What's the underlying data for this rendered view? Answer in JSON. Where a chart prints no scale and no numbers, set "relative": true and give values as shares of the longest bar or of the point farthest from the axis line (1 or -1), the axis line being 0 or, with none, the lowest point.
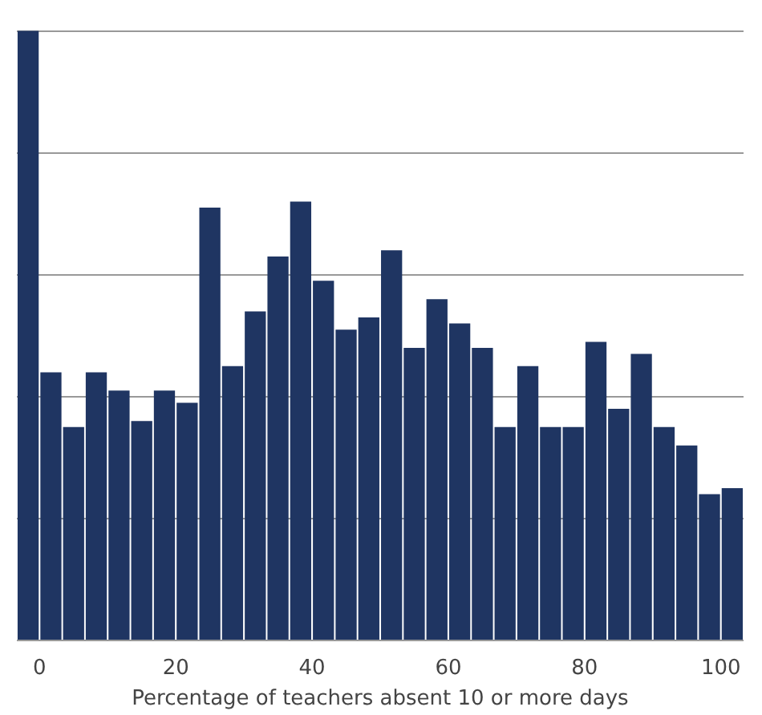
{
  "chart_data": {
    "type": "bar",
    "relative": true,
    "xlabel": "Percentage of teachers absent 10 or more days",
    "color": "#1f3562",
    "grid": "y",
    "xlim": [
      -3.33,
      103.33
    ],
    "xticks": [
      0,
      20,
      40,
      60,
      80,
      100
    ],
    "x": [
      -1.67,
      1.67,
      5,
      8.33,
      11.67,
      15,
      18.33,
      21.67,
      25,
      28.33,
      31.67,
      35,
      38.33,
      41.67,
      45,
      48.33,
      51.67,
      55,
      58.33,
      61.67,
      65,
      68.33,
      71.67,
      75,
      78.33,
      81.67,
      85,
      88.33,
      91.67,
      95,
      98.33,
      101.67
    ],
    "values": [
      1,
      0.44,
      0.35,
      0.44,
      0.41,
      0.36,
      0.41,
      0.39,
      0.71,
      0.45,
      0.54,
      0.63,
      0.72,
      0.59,
      0.51,
      0.53,
      0.64,
      0.48,
      0.56,
      0.52,
      0.48,
      0.35,
      0.45,
      0.35,
      0.35,
      0.49,
      0.38,
      0.47,
      0.35,
      0.32,
      0.24,
      0.25
    ]
  }
}
